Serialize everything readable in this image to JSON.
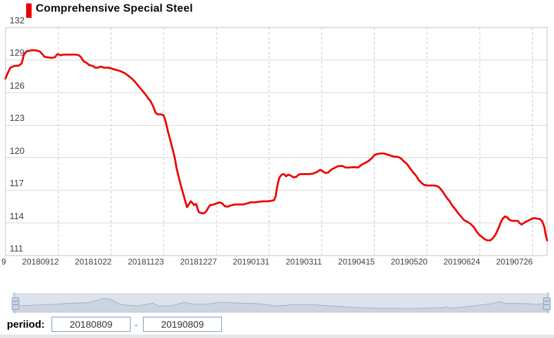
{
  "chart": {
    "title": "Comprehensive Special Steel",
    "series_color": "#ee0000",
    "grid_color_h": "#d9d9d9",
    "grid_color_v": "#cccccc",
    "border_color": "#c6c6c6"
  },
  "chart_data": {
    "type": "line",
    "title": "Comprehensive Special Steel",
    "legend": [
      "Comprehensive Special Steel"
    ],
    "x_range": [
      "20180809",
      "20190809"
    ],
    "y_min": 111,
    "y_max": 132,
    "y_ticks": [
      132,
      129,
      126,
      123,
      120,
      117,
      114,
      111
    ],
    "x_tick_labels": [
      "9",
      "20180912",
      "20181022",
      "20181123",
      "20181227",
      "20190131",
      "20190311",
      "20190415",
      "20190520",
      "20190624",
      "20190726"
    ],
    "grid": "on",
    "legend_position": "top-left",
    "series": [
      {
        "name": "Comprehensive Special Steel",
        "color": "#ee0000",
        "points": [
          [
            0,
            127.3
          ],
          [
            0.004,
            127.8
          ],
          [
            0.009,
            128.3
          ],
          [
            0.016,
            128.45
          ],
          [
            0.025,
            128.5
          ],
          [
            0.03,
            128.7
          ],
          [
            0.034,
            129.5
          ],
          [
            0.039,
            129.8
          ],
          [
            0.048,
            129.9
          ],
          [
            0.056,
            129.9
          ],
          [
            0.063,
            129.8
          ],
          [
            0.068,
            129.55
          ],
          [
            0.072,
            129.3
          ],
          [
            0.078,
            129.25
          ],
          [
            0.085,
            129.2
          ],
          [
            0.091,
            129.25
          ],
          [
            0.096,
            129.55
          ],
          [
            0.101,
            129.45
          ],
          [
            0.109,
            129.5
          ],
          [
            0.119,
            129.5
          ],
          [
            0.129,
            129.5
          ],
          [
            0.135,
            129.45
          ],
          [
            0.139,
            129.3
          ],
          [
            0.144,
            128.9
          ],
          [
            0.151,
            128.7
          ],
          [
            0.154,
            128.55
          ],
          [
            0.161,
            128.45
          ],
          [
            0.166,
            128.3
          ],
          [
            0.17,
            128.3
          ],
          [
            0.176,
            128.4
          ],
          [
            0.182,
            128.3
          ],
          [
            0.19,
            128.3
          ],
          [
            0.197,
            128.2
          ],
          [
            0.204,
            128.1
          ],
          [
            0.211,
            128.0
          ],
          [
            0.22,
            127.8
          ],
          [
            0.227,
            127.55
          ],
          [
            0.233,
            127.3
          ],
          [
            0.239,
            127.0
          ],
          [
            0.244,
            126.7
          ],
          [
            0.249,
            126.4
          ],
          [
            0.254,
            126.1
          ],
          [
            0.259,
            125.8
          ],
          [
            0.263,
            125.5
          ],
          [
            0.268,
            125.2
          ],
          [
            0.273,
            124.7
          ],
          [
            0.277,
            124.15
          ],
          [
            0.281,
            124.0
          ],
          [
            0.287,
            124.0
          ],
          [
            0.292,
            123.9
          ],
          [
            0.296,
            123.3
          ],
          [
            0.3,
            122.4
          ],
          [
            0.305,
            121.5
          ],
          [
            0.309,
            120.7
          ],
          [
            0.313,
            119.9
          ],
          [
            0.316,
            119.0
          ],
          [
            0.32,
            118.2
          ],
          [
            0.324,
            117.4
          ],
          [
            0.328,
            116.7
          ],
          [
            0.332,
            116.0
          ],
          [
            0.335,
            115.45
          ],
          [
            0.339,
            115.75
          ],
          [
            0.342,
            116.0
          ],
          [
            0.346,
            115.8
          ],
          [
            0.348,
            115.65
          ],
          [
            0.352,
            115.75
          ],
          [
            0.354,
            115.4
          ],
          [
            0.357,
            115.0
          ],
          [
            0.362,
            114.9
          ],
          [
            0.367,
            114.9
          ],
          [
            0.371,
            115.1
          ],
          [
            0.375,
            115.45
          ],
          [
            0.378,
            115.65
          ],
          [
            0.384,
            115.7
          ],
          [
            0.39,
            115.8
          ],
          [
            0.395,
            115.9
          ],
          [
            0.4,
            115.8
          ],
          [
            0.405,
            115.55
          ],
          [
            0.41,
            115.5
          ],
          [
            0.415,
            115.6
          ],
          [
            0.423,
            115.7
          ],
          [
            0.43,
            115.7
          ],
          [
            0.438,
            115.7
          ],
          [
            0.446,
            115.8
          ],
          [
            0.453,
            115.9
          ],
          [
            0.461,
            115.9
          ],
          [
            0.468,
            115.95
          ],
          [
            0.476,
            116.0
          ],
          [
            0.484,
            116.0
          ],
          [
            0.491,
            116.05
          ],
          [
            0.496,
            116.1
          ],
          [
            0.499,
            116.5
          ],
          [
            0.501,
            117.2
          ],
          [
            0.504,
            117.9
          ],
          [
            0.506,
            118.2
          ],
          [
            0.51,
            118.45
          ],
          [
            0.514,
            118.5
          ],
          [
            0.518,
            118.3
          ],
          [
            0.522,
            118.45
          ],
          [
            0.527,
            118.35
          ],
          [
            0.532,
            118.2
          ],
          [
            0.537,
            118.25
          ],
          [
            0.541,
            118.45
          ],
          [
            0.546,
            118.5
          ],
          [
            0.553,
            118.5
          ],
          [
            0.561,
            118.5
          ],
          [
            0.568,
            118.55
          ],
          [
            0.575,
            118.7
          ],
          [
            0.581,
            118.9
          ],
          [
            0.586,
            118.75
          ],
          [
            0.591,
            118.6
          ],
          [
            0.596,
            118.65
          ],
          [
            0.601,
            118.9
          ],
          [
            0.609,
            119.1
          ],
          [
            0.615,
            119.25
          ],
          [
            0.622,
            119.25
          ],
          [
            0.628,
            119.1
          ],
          [
            0.635,
            119.1
          ],
          [
            0.643,
            119.15
          ],
          [
            0.651,
            119.1
          ],
          [
            0.657,
            119.35
          ],
          [
            0.663,
            119.5
          ],
          [
            0.67,
            119.7
          ],
          [
            0.676,
            119.95
          ],
          [
            0.681,
            120.25
          ],
          [
            0.686,
            120.35
          ],
          [
            0.692,
            120.4
          ],
          [
            0.699,
            120.4
          ],
          [
            0.705,
            120.3
          ],
          [
            0.711,
            120.2
          ],
          [
            0.718,
            120.1
          ],
          [
            0.724,
            120.1
          ],
          [
            0.73,
            119.95
          ],
          [
            0.735,
            119.7
          ],
          [
            0.741,
            119.45
          ],
          [
            0.746,
            119.1
          ],
          [
            0.752,
            118.7
          ],
          [
            0.758,
            118.35
          ],
          [
            0.763,
            117.95
          ],
          [
            0.768,
            117.7
          ],
          [
            0.773,
            117.5
          ],
          [
            0.78,
            117.45
          ],
          [
            0.786,
            117.45
          ],
          [
            0.792,
            117.45
          ],
          [
            0.799,
            117.35
          ],
          [
            0.804,
            117.1
          ],
          [
            0.809,
            116.75
          ],
          [
            0.815,
            116.3
          ],
          [
            0.82,
            116.0
          ],
          [
            0.825,
            115.6
          ],
          [
            0.83,
            115.3
          ],
          [
            0.835,
            114.95
          ],
          [
            0.841,
            114.6
          ],
          [
            0.847,
            114.25
          ],
          [
            0.853,
            114.1
          ],
          [
            0.859,
            113.9
          ],
          [
            0.865,
            113.6
          ],
          [
            0.87,
            113.2
          ],
          [
            0.875,
            112.9
          ],
          [
            0.88,
            112.7
          ],
          [
            0.885,
            112.5
          ],
          [
            0.89,
            112.4
          ],
          [
            0.895,
            112.4
          ],
          [
            0.9,
            112.6
          ],
          [
            0.905,
            112.95
          ],
          [
            0.91,
            113.5
          ],
          [
            0.914,
            114.0
          ],
          [
            0.918,
            114.4
          ],
          [
            0.922,
            114.6
          ],
          [
            0.927,
            114.5
          ],
          [
            0.93,
            114.3
          ],
          [
            0.935,
            114.2
          ],
          [
            0.94,
            114.2
          ],
          [
            0.946,
            114.2
          ],
          [
            0.949,
            114.0
          ],
          [
            0.953,
            113.85
          ],
          [
            0.957,
            114.0
          ],
          [
            0.962,
            114.15
          ],
          [
            0.967,
            114.25
          ],
          [
            0.972,
            114.4
          ],
          [
            0.977,
            114.45
          ],
          [
            0.982,
            114.4
          ],
          [
            0.987,
            114.35
          ],
          [
            0.991,
            114.15
          ],
          [
            0.995,
            113.6
          ],
          [
            0.997,
            113.0
          ],
          [
            1,
            112.4
          ]
        ]
      }
    ],
    "navigator": {
      "fill": "#ccd4e2",
      "stroke": "#a6aebf",
      "points": [
        [
          0,
          0.33
        ],
        [
          0.073,
          0.42
        ],
        [
          0.105,
          0.48
        ],
        [
          0.143,
          0.52
        ],
        [
          0.169,
          0.75
        ],
        [
          0.182,
          0.72
        ],
        [
          0.201,
          0.41
        ],
        [
          0.233,
          0.33
        ],
        [
          0.262,
          0.5
        ],
        [
          0.271,
          0.33
        ],
        [
          0.297,
          0.35
        ],
        [
          0.32,
          0.54
        ],
        [
          0.335,
          0.44
        ],
        [
          0.361,
          0.43
        ],
        [
          0.386,
          0.54
        ],
        [
          0.418,
          0.5
        ],
        [
          0.457,
          0.46
        ],
        [
          0.492,
          0.34
        ],
        [
          0.527,
          0.41
        ],
        [
          0.553,
          0.42
        ],
        [
          0.604,
          0.31
        ],
        [
          0.642,
          0.24
        ],
        [
          0.684,
          0.2
        ],
        [
          0.744,
          0.19
        ],
        [
          0.802,
          0.24
        ],
        [
          0.808,
          0.29
        ],
        [
          0.815,
          0.2
        ],
        [
          0.842,
          0.28
        ],
        [
          0.859,
          0.34
        ],
        [
          0.893,
          0.47
        ],
        [
          0.906,
          0.57
        ],
        [
          0.918,
          0.47
        ],
        [
          0.953,
          0.47
        ],
        [
          0.975,
          0.42
        ],
        [
          1,
          0.51
        ]
      ]
    }
  },
  "period": {
    "label": "periiod:",
    "start": "20180809",
    "separator": "-",
    "end": "20190809"
  }
}
